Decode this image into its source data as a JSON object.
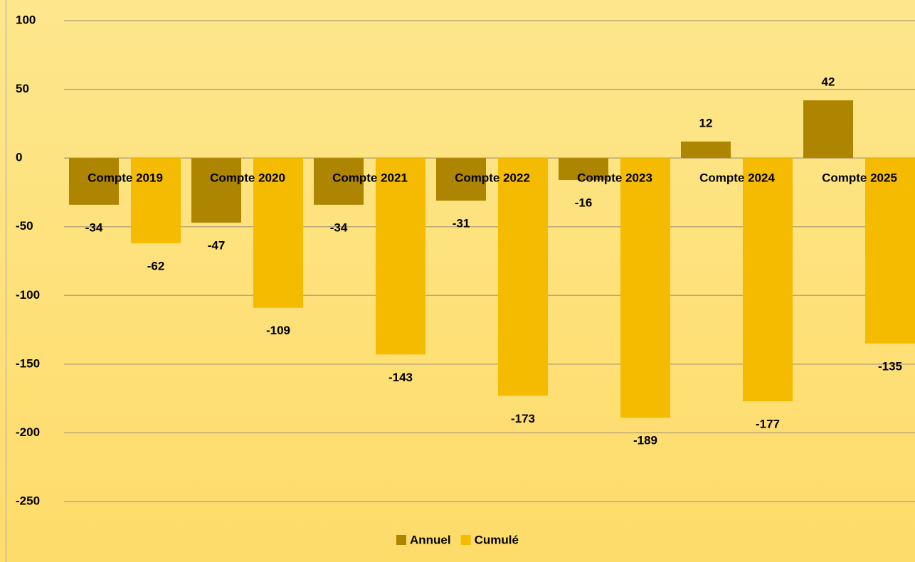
{
  "chart_data": {
    "type": "bar",
    "categories": [
      "Compte 2019",
      "Compte 2020",
      "Compte 2021",
      "Compte 2022",
      "Compte 2023",
      "Compte 2024",
      "Compte 2025"
    ],
    "series": [
      {
        "name": "Annuel",
        "color": "#ae8500",
        "values": [
          -34,
          -47,
          -34,
          -31,
          -16,
          12,
          42
        ]
      },
      {
        "name": "Cumulé",
        "color": "#f5bb00",
        "values": [
          -62,
          -109,
          -143,
          -173,
          -189,
          -177,
          -135
        ]
      }
    ],
    "ylim": [
      -250,
      100
    ],
    "yticks": [
      -250,
      -200,
      -150,
      -100,
      -50,
      0,
      50,
      100
    ],
    "grid": true,
    "legend": "bottom"
  }
}
